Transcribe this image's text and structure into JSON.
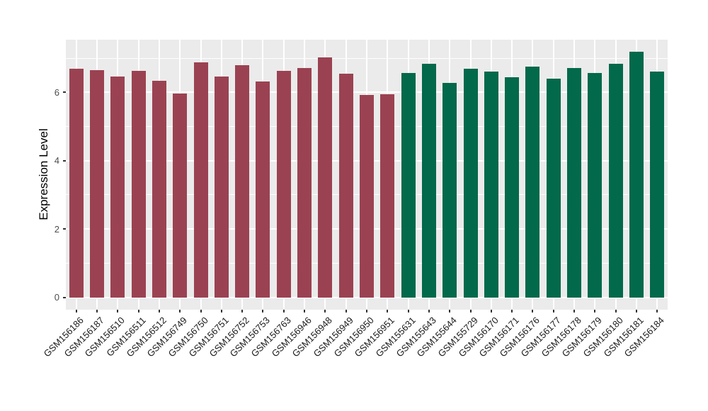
{
  "chart_data": {
    "type": "bar",
    "title": "",
    "xlabel": "",
    "ylabel": "Expression Level",
    "categories": [
      "GSM156186",
      "GSM156187",
      "GSM156510",
      "GSM156511",
      "GSM156512",
      "GSM156749",
      "GSM156750",
      "GSM156751",
      "GSM156752",
      "GSM156753",
      "GSM156763",
      "GSM156946",
      "GSM156948",
      "GSM156949",
      "GSM156950",
      "GSM156951",
      "GSM155631",
      "GSM155643",
      "GSM155644",
      "GSM155729",
      "GSM156170",
      "GSM156171",
      "GSM156176",
      "GSM156177",
      "GSM156178",
      "GSM156179",
      "GSM156180",
      "GSM156181",
      "GSM156184"
    ],
    "values": [
      6.7,
      6.64,
      6.46,
      6.62,
      6.33,
      5.97,
      6.87,
      6.46,
      6.79,
      6.31,
      6.62,
      6.72,
      7.02,
      6.55,
      5.93,
      5.95,
      6.56,
      6.83,
      6.27,
      6.7,
      6.6,
      6.45,
      6.75,
      6.4,
      6.72,
      6.56,
      6.83,
      7.18,
      6.6
    ],
    "bar_groups": [
      "group1",
      "group1",
      "group1",
      "group1",
      "group1",
      "group1",
      "group1",
      "group1",
      "group1",
      "group1",
      "group1",
      "group1",
      "group1",
      "group1",
      "group1",
      "group1",
      "group2",
      "group2",
      "group2",
      "group2",
      "group2",
      "group2",
      "group2",
      "group2",
      "group2",
      "group2",
      "group2",
      "group2",
      "group2"
    ],
    "group_colors": {
      "group1": "#9B4252",
      "group2": "#02694B"
    },
    "y_ticks": [
      0,
      2,
      4,
      6
    ],
    "y_minor_ticks": [
      1,
      3,
      5,
      7
    ],
    "ylim": [
      -0.36,
      7.54
    ],
    "legend": "none",
    "grid": "on",
    "panel_bg_color": "#EBEBEB",
    "grid_color": "#FFFFFF"
  }
}
